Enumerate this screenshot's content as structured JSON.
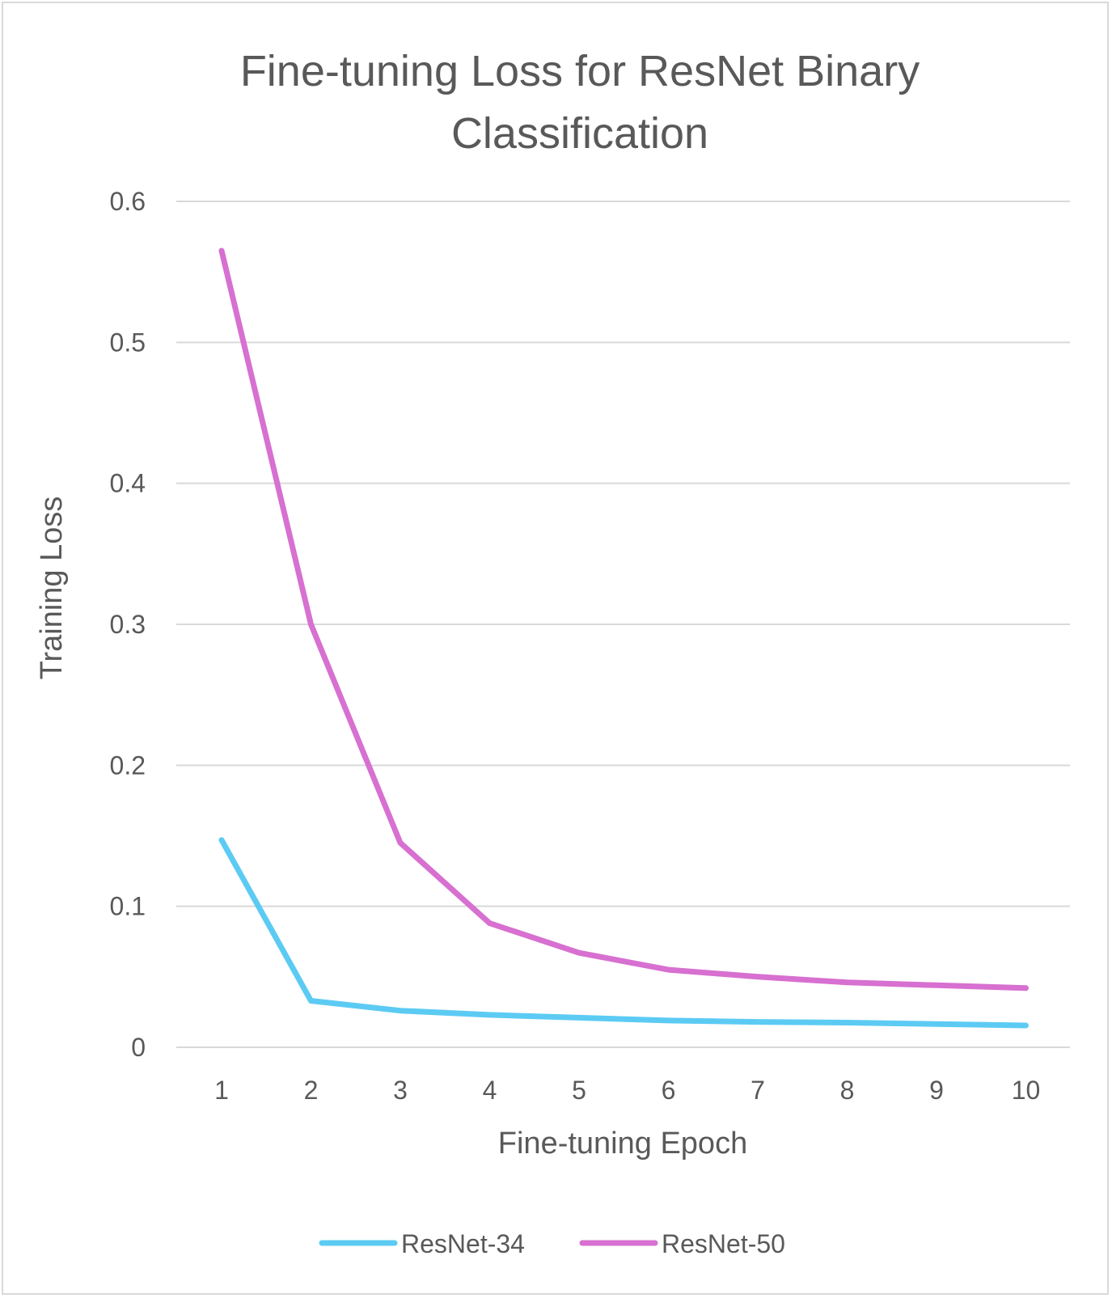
{
  "chart_data": {
    "type": "line",
    "title": "Fine-tuning Loss for ResNet Binary Classification",
    "title_lines": [
      "Fine-tuning Loss for ResNet Binary",
      "Classification"
    ],
    "xlabel": "Fine-tuning Epoch",
    "ylabel": "Training Loss",
    "categories": [
      "1",
      "2",
      "3",
      "4",
      "5",
      "6",
      "7",
      "8",
      "9",
      "10"
    ],
    "y_ticks": [
      "0",
      "0.1",
      "0.2",
      "0.3",
      "0.4",
      "0.5",
      "0.6"
    ],
    "ylim": [
      0,
      0.6
    ],
    "grid": true,
    "legend_position": "bottom",
    "series": [
      {
        "name": "ResNet-34",
        "color": "#5ccbf3",
        "values": [
          0.147,
          0.033,
          0.026,
          0.023,
          0.021,
          0.019,
          0.018,
          0.0175,
          0.0165,
          0.0155
        ]
      },
      {
        "name": "ResNet-50",
        "color": "#d770d0",
        "values": [
          0.565,
          0.3,
          0.145,
          0.088,
          0.067,
          0.055,
          0.05,
          0.046,
          0.044,
          0.042
        ]
      }
    ]
  }
}
